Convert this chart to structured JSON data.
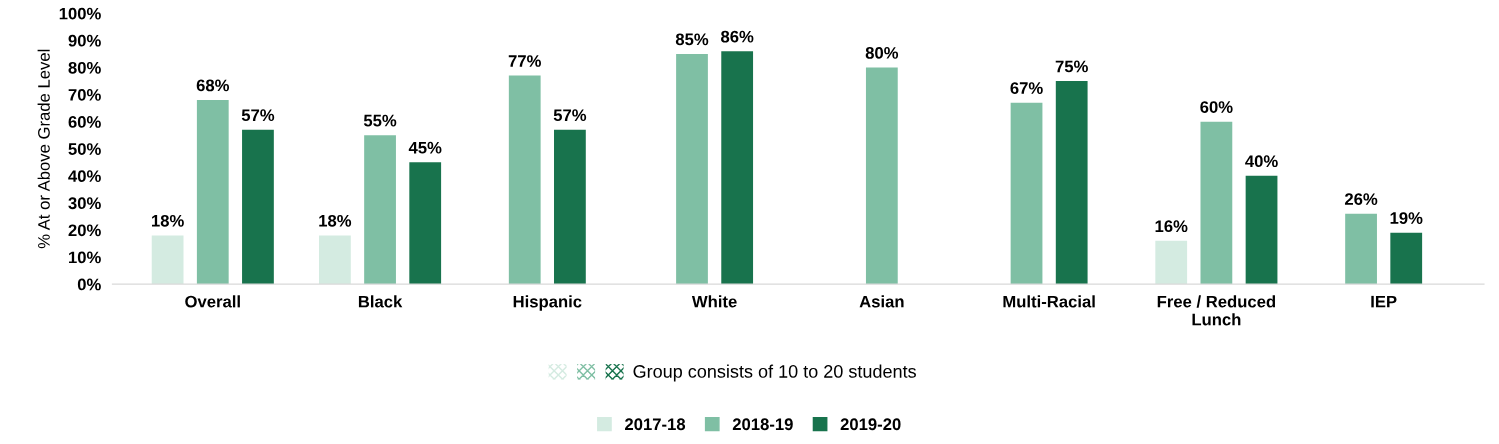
{
  "chart_data": {
    "type": "bar",
    "ylabel": "% At or Above Grade Level",
    "categories": [
      "Overall",
      "Black",
      "Hispanic",
      "White",
      "Asian",
      "Multi-Racial",
      "Free / Reduced\nLunch",
      "IEP"
    ],
    "series": [
      {
        "name": "2017-18",
        "color": "#d4ebe1",
        "values": [
          18,
          18,
          null,
          null,
          null,
          null,
          16,
          null
        ],
        "value_labels": [
          "18%",
          "18%",
          null,
          null,
          null,
          null,
          "16%",
          null
        ]
      },
      {
        "name": "2018-19",
        "color": "#7fbfa4",
        "values": [
          68,
          55,
          77,
          85,
          80,
          67,
          60,
          26
        ],
        "value_labels": [
          "68%",
          "55%",
          "77%",
          "85%",
          "80%",
          "67%",
          "60%",
          "26%"
        ]
      },
      {
        "name": "2019-20",
        "color": "#18734d",
        "values": [
          57,
          45,
          57,
          86,
          null,
          75,
          40,
          19
        ],
        "value_labels": [
          "57%",
          "45%",
          "57%",
          "86%",
          null,
          "75%",
          "40%",
          "19%"
        ]
      }
    ],
    "ylim": [
      0,
      100
    ],
    "yticks": [
      {
        "value": 0,
        "label": "0%"
      },
      {
        "value": 10,
        "label": "10%"
      },
      {
        "value": 20,
        "label": "20%"
      },
      {
        "value": 30,
        "label": "30%"
      },
      {
        "value": 40,
        "label": "40%"
      },
      {
        "value": 50,
        "label": "50%"
      },
      {
        "value": 60,
        "label": "60%"
      },
      {
        "value": 70,
        "label": "70%"
      },
      {
        "value": 80,
        "label": "80%"
      },
      {
        "value": 90,
        "label": "90%"
      },
      {
        "value": 100,
        "label": "100%"
      }
    ],
    "annotations": [
      "Group consists of 10 to 20 students"
    ],
    "grid": false,
    "legend": "bottom"
  }
}
